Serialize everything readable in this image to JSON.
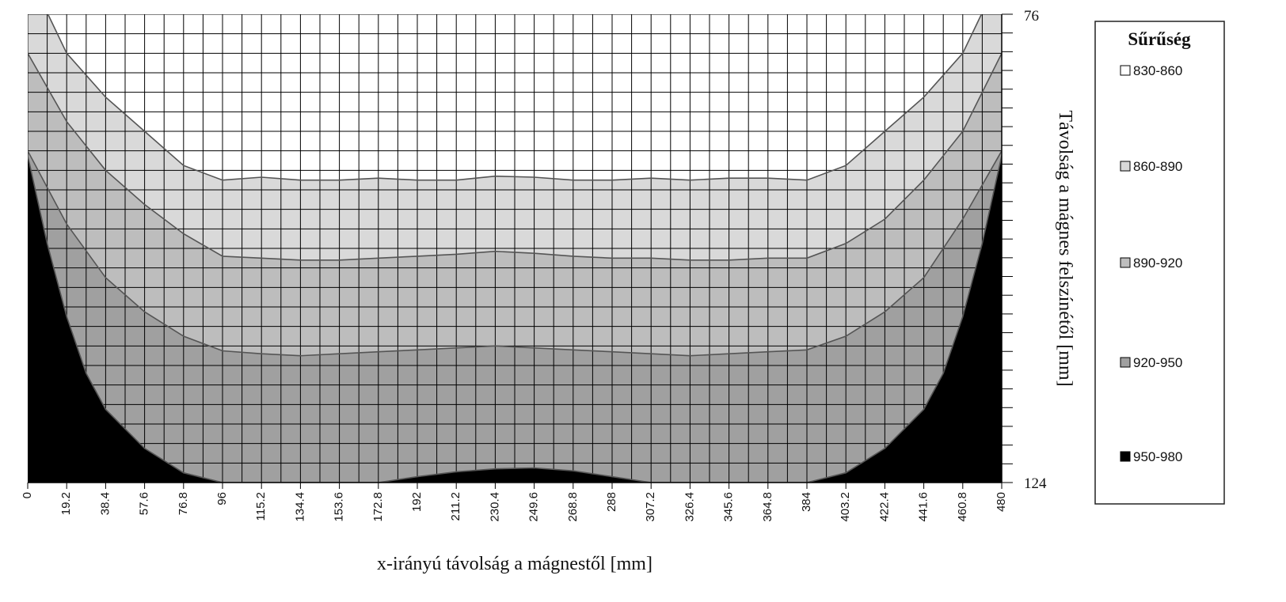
{
  "chart_data": {
    "type": "contour",
    "xlabel": "x-irányú távolság a mágnestől [mm]",
    "ylabel": "Távolság a mágnes felszínétől [mm]",
    "x_ticks": [
      "0",
      "19.2",
      "38.4",
      "57.6",
      "76.8",
      "96",
      "115.2",
      "134.4",
      "153.6",
      "172.8",
      "192",
      "211.2",
      "230.4",
      "249.6",
      "268.8",
      "288",
      "307.2",
      "326.4",
      "345.6",
      "364.8",
      "384",
      "403.2",
      "422.4",
      "441.6",
      "460.8",
      "480"
    ],
    "y_tick_labels": [
      "76",
      "124"
    ],
    "xlim": [
      0,
      480
    ],
    "ylim": [
      124,
      76
    ],
    "y_minor_ticks": 25,
    "grid": true,
    "legend": {
      "title": "Sűrűség",
      "position": "right",
      "entries": [
        {
          "label": "830-860",
          "color": "#ffffff"
        },
        {
          "label": "860-890",
          "color": "#d9d9d9"
        },
        {
          "label": "890-920",
          "color": "#bdbdbd"
        },
        {
          "label": "920-950",
          "color": "#a0a0a0"
        },
        {
          "label": "950-980",
          "color": "#000000"
        }
      ]
    },
    "contours": [
      {
        "level": 860,
        "points": [
          [
            10,
            76
          ],
          [
            19.2,
            80
          ],
          [
            38.4,
            84.5
          ],
          [
            57.6,
            88
          ],
          [
            76.8,
            91.5
          ],
          [
            96,
            93
          ],
          [
            115.2,
            92.7
          ],
          [
            134.4,
            93
          ],
          [
            153.6,
            93
          ],
          [
            172.8,
            92.8
          ],
          [
            192,
            93
          ],
          [
            211.2,
            93
          ],
          [
            230.4,
            92.6
          ],
          [
            249.6,
            92.7
          ],
          [
            268.8,
            93
          ],
          [
            288,
            93
          ],
          [
            307.2,
            92.8
          ],
          [
            326.4,
            93
          ],
          [
            345.6,
            92.8
          ],
          [
            364.8,
            92.8
          ],
          [
            384,
            93
          ],
          [
            403.2,
            91.5
          ],
          [
            422.4,
            88
          ],
          [
            441.6,
            84.5
          ],
          [
            460.8,
            80
          ],
          [
            470,
            76
          ]
        ]
      },
      {
        "level": 890,
        "points": [
          [
            0,
            80
          ],
          [
            19.2,
            87
          ],
          [
            38.4,
            92
          ],
          [
            57.6,
            95.5
          ],
          [
            76.8,
            98.5
          ],
          [
            96,
            100.8
          ],
          [
            115.2,
            101
          ],
          [
            134.4,
            101.2
          ],
          [
            153.6,
            101.2
          ],
          [
            172.8,
            101
          ],
          [
            192,
            100.8
          ],
          [
            211.2,
            100.6
          ],
          [
            230.4,
            100.3
          ],
          [
            249.6,
            100.5
          ],
          [
            268.8,
            100.8
          ],
          [
            288,
            101
          ],
          [
            307.2,
            101
          ],
          [
            326.4,
            101.2
          ],
          [
            345.6,
            101.2
          ],
          [
            364.8,
            101
          ],
          [
            384,
            101
          ],
          [
            403.2,
            99.5
          ],
          [
            422.4,
            97
          ],
          [
            441.6,
            93
          ],
          [
            460.8,
            88
          ],
          [
            480,
            80
          ]
        ]
      },
      {
        "level": 920,
        "points": [
          [
            0,
            90
          ],
          [
            19.2,
            97.5
          ],
          [
            38.4,
            103
          ],
          [
            57.6,
            106.5
          ],
          [
            76.8,
            109
          ],
          [
            96,
            110.5
          ],
          [
            115.2,
            110.8
          ],
          [
            134.4,
            111
          ],
          [
            153.6,
            110.8
          ],
          [
            172.8,
            110.6
          ],
          [
            192,
            110.4
          ],
          [
            211.2,
            110.2
          ],
          [
            230.4,
            110
          ],
          [
            249.6,
            110.2
          ],
          [
            268.8,
            110.4
          ],
          [
            288,
            110.6
          ],
          [
            307.2,
            110.8
          ],
          [
            326.4,
            111
          ],
          [
            345.6,
            110.8
          ],
          [
            364.8,
            110.6
          ],
          [
            384,
            110.4
          ],
          [
            403.2,
            109
          ],
          [
            422.4,
            106.5
          ],
          [
            441.6,
            103
          ],
          [
            460.8,
            97
          ],
          [
            480,
            90
          ]
        ]
      },
      {
        "level": 950,
        "points": [
          [
            0,
            90.5
          ],
          [
            9.6,
            99.5
          ],
          [
            19.2,
            107
          ],
          [
            28.8,
            112.8
          ],
          [
            38.4,
            116.5
          ],
          [
            57.6,
            120.5
          ],
          [
            76.8,
            123
          ],
          [
            96,
            124
          ],
          [
            384,
            124
          ],
          [
            403.2,
            123
          ],
          [
            422.4,
            120.5
          ],
          [
            441.6,
            116.5
          ],
          [
            451.2,
            112.8
          ],
          [
            460.8,
            107
          ],
          [
            470.4,
            99.5
          ],
          [
            480,
            90.5
          ]
        ]
      },
      {
        "level": 950,
        "points": [
          [
            172.8,
            124
          ],
          [
            192,
            123.4
          ],
          [
            211.2,
            122.9
          ],
          [
            230.4,
            122.6
          ],
          [
            249.6,
            122.5
          ],
          [
            268.8,
            122.8
          ],
          [
            288,
            123.4
          ],
          [
            307.2,
            124
          ]
        ]
      }
    ]
  }
}
